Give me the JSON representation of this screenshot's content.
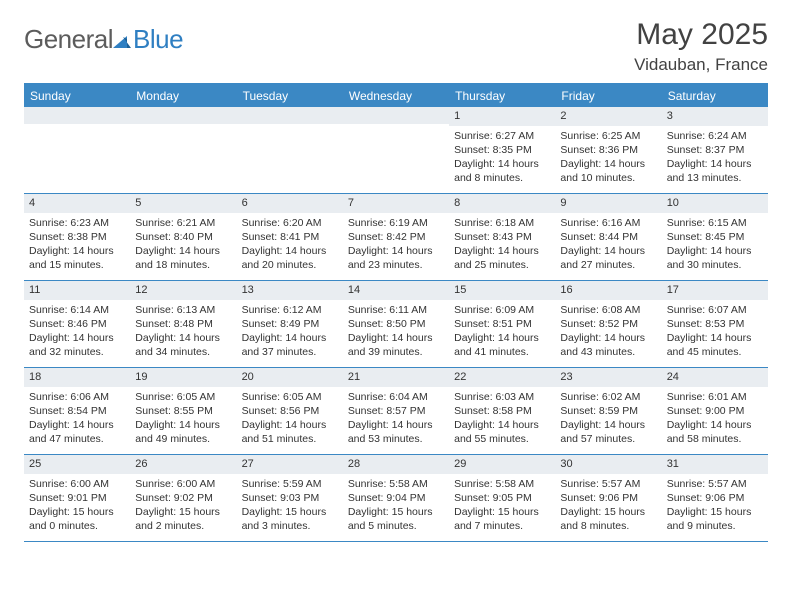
{
  "logo": {
    "general": "General",
    "blue": "Blue"
  },
  "title": "May 2025",
  "location": "Vidauban, France",
  "colors": {
    "header_bg": "#3b88c4",
    "daynum_bg": "#e9edf1",
    "title_text": "#424242",
    "logo_gray": "#5c5c5c",
    "logo_blue": "#2f7fc2"
  },
  "day_headers": [
    "Sunday",
    "Monday",
    "Tuesday",
    "Wednesday",
    "Thursday",
    "Friday",
    "Saturday"
  ],
  "weeks": [
    [
      {
        "num": "",
        "sunrise": "",
        "sunset": "",
        "daylight": ""
      },
      {
        "num": "",
        "sunrise": "",
        "sunset": "",
        "daylight": ""
      },
      {
        "num": "",
        "sunrise": "",
        "sunset": "",
        "daylight": ""
      },
      {
        "num": "",
        "sunrise": "",
        "sunset": "",
        "daylight": ""
      },
      {
        "num": "1",
        "sunrise": "Sunrise: 6:27 AM",
        "sunset": "Sunset: 8:35 PM",
        "daylight": "Daylight: 14 hours and 8 minutes."
      },
      {
        "num": "2",
        "sunrise": "Sunrise: 6:25 AM",
        "sunset": "Sunset: 8:36 PM",
        "daylight": "Daylight: 14 hours and 10 minutes."
      },
      {
        "num": "3",
        "sunrise": "Sunrise: 6:24 AM",
        "sunset": "Sunset: 8:37 PM",
        "daylight": "Daylight: 14 hours and 13 minutes."
      }
    ],
    [
      {
        "num": "4",
        "sunrise": "Sunrise: 6:23 AM",
        "sunset": "Sunset: 8:38 PM",
        "daylight": "Daylight: 14 hours and 15 minutes."
      },
      {
        "num": "5",
        "sunrise": "Sunrise: 6:21 AM",
        "sunset": "Sunset: 8:40 PM",
        "daylight": "Daylight: 14 hours and 18 minutes."
      },
      {
        "num": "6",
        "sunrise": "Sunrise: 6:20 AM",
        "sunset": "Sunset: 8:41 PM",
        "daylight": "Daylight: 14 hours and 20 minutes."
      },
      {
        "num": "7",
        "sunrise": "Sunrise: 6:19 AM",
        "sunset": "Sunset: 8:42 PM",
        "daylight": "Daylight: 14 hours and 23 minutes."
      },
      {
        "num": "8",
        "sunrise": "Sunrise: 6:18 AM",
        "sunset": "Sunset: 8:43 PM",
        "daylight": "Daylight: 14 hours and 25 minutes."
      },
      {
        "num": "9",
        "sunrise": "Sunrise: 6:16 AM",
        "sunset": "Sunset: 8:44 PM",
        "daylight": "Daylight: 14 hours and 27 minutes."
      },
      {
        "num": "10",
        "sunrise": "Sunrise: 6:15 AM",
        "sunset": "Sunset: 8:45 PM",
        "daylight": "Daylight: 14 hours and 30 minutes."
      }
    ],
    [
      {
        "num": "11",
        "sunrise": "Sunrise: 6:14 AM",
        "sunset": "Sunset: 8:46 PM",
        "daylight": "Daylight: 14 hours and 32 minutes."
      },
      {
        "num": "12",
        "sunrise": "Sunrise: 6:13 AM",
        "sunset": "Sunset: 8:48 PM",
        "daylight": "Daylight: 14 hours and 34 minutes."
      },
      {
        "num": "13",
        "sunrise": "Sunrise: 6:12 AM",
        "sunset": "Sunset: 8:49 PM",
        "daylight": "Daylight: 14 hours and 37 minutes."
      },
      {
        "num": "14",
        "sunrise": "Sunrise: 6:11 AM",
        "sunset": "Sunset: 8:50 PM",
        "daylight": "Daylight: 14 hours and 39 minutes."
      },
      {
        "num": "15",
        "sunrise": "Sunrise: 6:09 AM",
        "sunset": "Sunset: 8:51 PM",
        "daylight": "Daylight: 14 hours and 41 minutes."
      },
      {
        "num": "16",
        "sunrise": "Sunrise: 6:08 AM",
        "sunset": "Sunset: 8:52 PM",
        "daylight": "Daylight: 14 hours and 43 minutes."
      },
      {
        "num": "17",
        "sunrise": "Sunrise: 6:07 AM",
        "sunset": "Sunset: 8:53 PM",
        "daylight": "Daylight: 14 hours and 45 minutes."
      }
    ],
    [
      {
        "num": "18",
        "sunrise": "Sunrise: 6:06 AM",
        "sunset": "Sunset: 8:54 PM",
        "daylight": "Daylight: 14 hours and 47 minutes."
      },
      {
        "num": "19",
        "sunrise": "Sunrise: 6:05 AM",
        "sunset": "Sunset: 8:55 PM",
        "daylight": "Daylight: 14 hours and 49 minutes."
      },
      {
        "num": "20",
        "sunrise": "Sunrise: 6:05 AM",
        "sunset": "Sunset: 8:56 PM",
        "daylight": "Daylight: 14 hours and 51 minutes."
      },
      {
        "num": "21",
        "sunrise": "Sunrise: 6:04 AM",
        "sunset": "Sunset: 8:57 PM",
        "daylight": "Daylight: 14 hours and 53 minutes."
      },
      {
        "num": "22",
        "sunrise": "Sunrise: 6:03 AM",
        "sunset": "Sunset: 8:58 PM",
        "daylight": "Daylight: 14 hours and 55 minutes."
      },
      {
        "num": "23",
        "sunrise": "Sunrise: 6:02 AM",
        "sunset": "Sunset: 8:59 PM",
        "daylight": "Daylight: 14 hours and 57 minutes."
      },
      {
        "num": "24",
        "sunrise": "Sunrise: 6:01 AM",
        "sunset": "Sunset: 9:00 PM",
        "daylight": "Daylight: 14 hours and 58 minutes."
      }
    ],
    [
      {
        "num": "25",
        "sunrise": "Sunrise: 6:00 AM",
        "sunset": "Sunset: 9:01 PM",
        "daylight": "Daylight: 15 hours and 0 minutes."
      },
      {
        "num": "26",
        "sunrise": "Sunrise: 6:00 AM",
        "sunset": "Sunset: 9:02 PM",
        "daylight": "Daylight: 15 hours and 2 minutes."
      },
      {
        "num": "27",
        "sunrise": "Sunrise: 5:59 AM",
        "sunset": "Sunset: 9:03 PM",
        "daylight": "Daylight: 15 hours and 3 minutes."
      },
      {
        "num": "28",
        "sunrise": "Sunrise: 5:58 AM",
        "sunset": "Sunset: 9:04 PM",
        "daylight": "Daylight: 15 hours and 5 minutes."
      },
      {
        "num": "29",
        "sunrise": "Sunrise: 5:58 AM",
        "sunset": "Sunset: 9:05 PM",
        "daylight": "Daylight: 15 hours and 7 minutes."
      },
      {
        "num": "30",
        "sunrise": "Sunrise: 5:57 AM",
        "sunset": "Sunset: 9:06 PM",
        "daylight": "Daylight: 15 hours and 8 minutes."
      },
      {
        "num": "31",
        "sunrise": "Sunrise: 5:57 AM",
        "sunset": "Sunset: 9:06 PM",
        "daylight": "Daylight: 15 hours and 9 minutes."
      }
    ]
  ]
}
